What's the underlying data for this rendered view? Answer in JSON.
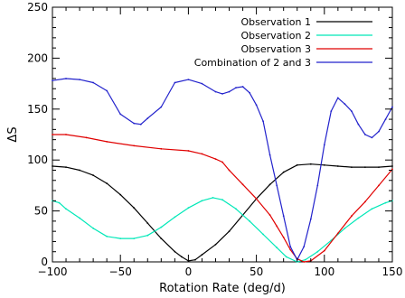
{
  "chart_data": {
    "type": "line",
    "title": "",
    "xlabel": "Rotation Rate (deg/d)",
    "ylabel": "ΔS",
    "xlim": [
      -100,
      150
    ],
    "ylim": [
      0,
      250
    ],
    "x_ticks": [
      -100,
      -50,
      0,
      50,
      100,
      150
    ],
    "y_ticks": [
      0,
      50,
      100,
      150,
      200,
      250
    ],
    "x_tick_labels": [
      "−100",
      "−50",
      "0",
      "50",
      "100",
      "150"
    ],
    "y_tick_labels": [
      "0",
      "50",
      "100",
      "150",
      "200",
      "250"
    ],
    "grid": false,
    "legend_position": "top-right",
    "series": [
      {
        "name": "Observation 1",
        "color": "#000000",
        "points": [
          [
            -100,
            94
          ],
          [
            -90,
            93
          ],
          [
            -80,
            90
          ],
          [
            -70,
            85
          ],
          [
            -60,
            77
          ],
          [
            -50,
            66
          ],
          [
            -40,
            53
          ],
          [
            -30,
            38
          ],
          [
            -20,
            23
          ],
          [
            -10,
            10
          ],
          [
            -5,
            5
          ],
          [
            0,
            1
          ],
          [
            5,
            2
          ],
          [
            10,
            7
          ],
          [
            20,
            17
          ],
          [
            30,
            30
          ],
          [
            40,
            46
          ],
          [
            50,
            62
          ],
          [
            60,
            76
          ],
          [
            70,
            88
          ],
          [
            80,
            95
          ],
          [
            90,
            96
          ],
          [
            100,
            95
          ],
          [
            110,
            94
          ],
          [
            120,
            93
          ],
          [
            130,
            93
          ],
          [
            140,
            93
          ],
          [
            150,
            94
          ]
        ]
      },
      {
        "name": "Observation 2",
        "color": "#00e8b8",
        "points": [
          [
            -100,
            60
          ],
          [
            -95,
            58
          ],
          [
            -90,
            52
          ],
          [
            -80,
            43
          ],
          [
            -70,
            33
          ],
          [
            -60,
            25
          ],
          [
            -50,
            23
          ],
          [
            -40,
            23
          ],
          [
            -30,
            26
          ],
          [
            -20,
            34
          ],
          [
            -10,
            44
          ],
          [
            0,
            53
          ],
          [
            10,
            60
          ],
          [
            18,
            63
          ],
          [
            25,
            61
          ],
          [
            35,
            52
          ],
          [
            45,
            40
          ],
          [
            55,
            27
          ],
          [
            65,
            14
          ],
          [
            72,
            5
          ],
          [
            80,
            0
          ],
          [
            86,
            2
          ],
          [
            95,
            10
          ],
          [
            105,
            21
          ],
          [
            115,
            33
          ],
          [
            125,
            43
          ],
          [
            135,
            52
          ],
          [
            145,
            58
          ],
          [
            150,
            60
          ]
        ]
      },
      {
        "name": "Observation 3",
        "color": "#e00000",
        "points": [
          [
            -100,
            125
          ],
          [
            -90,
            125
          ],
          [
            -75,
            122
          ],
          [
            -60,
            118
          ],
          [
            -40,
            114
          ],
          [
            -20,
            111
          ],
          [
            0,
            109
          ],
          [
            10,
            106
          ],
          [
            20,
            101
          ],
          [
            25,
            98
          ],
          [
            30,
            90
          ],
          [
            40,
            76
          ],
          [
            50,
            62
          ],
          [
            60,
            46
          ],
          [
            65,
            35
          ],
          [
            70,
            24
          ],
          [
            75,
            12
          ],
          [
            80,
            3
          ],
          [
            85,
            0
          ],
          [
            90,
            1
          ],
          [
            100,
            11
          ],
          [
            110,
            28
          ],
          [
            120,
            45
          ],
          [
            130,
            59
          ],
          [
            140,
            75
          ],
          [
            150,
            91
          ]
        ]
      },
      {
        "name": "Combination of 2 and 3",
        "color": "#2222cc",
        "points": [
          [
            -100,
            178
          ],
          [
            -90,
            180
          ],
          [
            -80,
            179
          ],
          [
            -70,
            176
          ],
          [
            -60,
            168
          ],
          [
            -50,
            145
          ],
          [
            -40,
            136
          ],
          [
            -35,
            135
          ],
          [
            -30,
            141
          ],
          [
            -20,
            152
          ],
          [
            -10,
            176
          ],
          [
            0,
            179
          ],
          [
            10,
            175
          ],
          [
            20,
            167
          ],
          [
            25,
            165
          ],
          [
            30,
            167
          ],
          [
            35,
            171
          ],
          [
            40,
            172
          ],
          [
            45,
            166
          ],
          [
            50,
            154
          ],
          [
            55,
            138
          ],
          [
            60,
            105
          ],
          [
            65,
            75
          ],
          [
            70,
            45
          ],
          [
            75,
            15
          ],
          [
            80,
            2
          ],
          [
            85,
            15
          ],
          [
            90,
            42
          ],
          [
            95,
            75
          ],
          [
            100,
            115
          ],
          [
            105,
            148
          ],
          [
            110,
            161
          ],
          [
            115,
            155
          ],
          [
            120,
            148
          ],
          [
            125,
            135
          ],
          [
            130,
            125
          ],
          [
            135,
            122
          ],
          [
            140,
            128
          ],
          [
            145,
            140
          ],
          [
            150,
            152
          ]
        ]
      }
    ]
  }
}
